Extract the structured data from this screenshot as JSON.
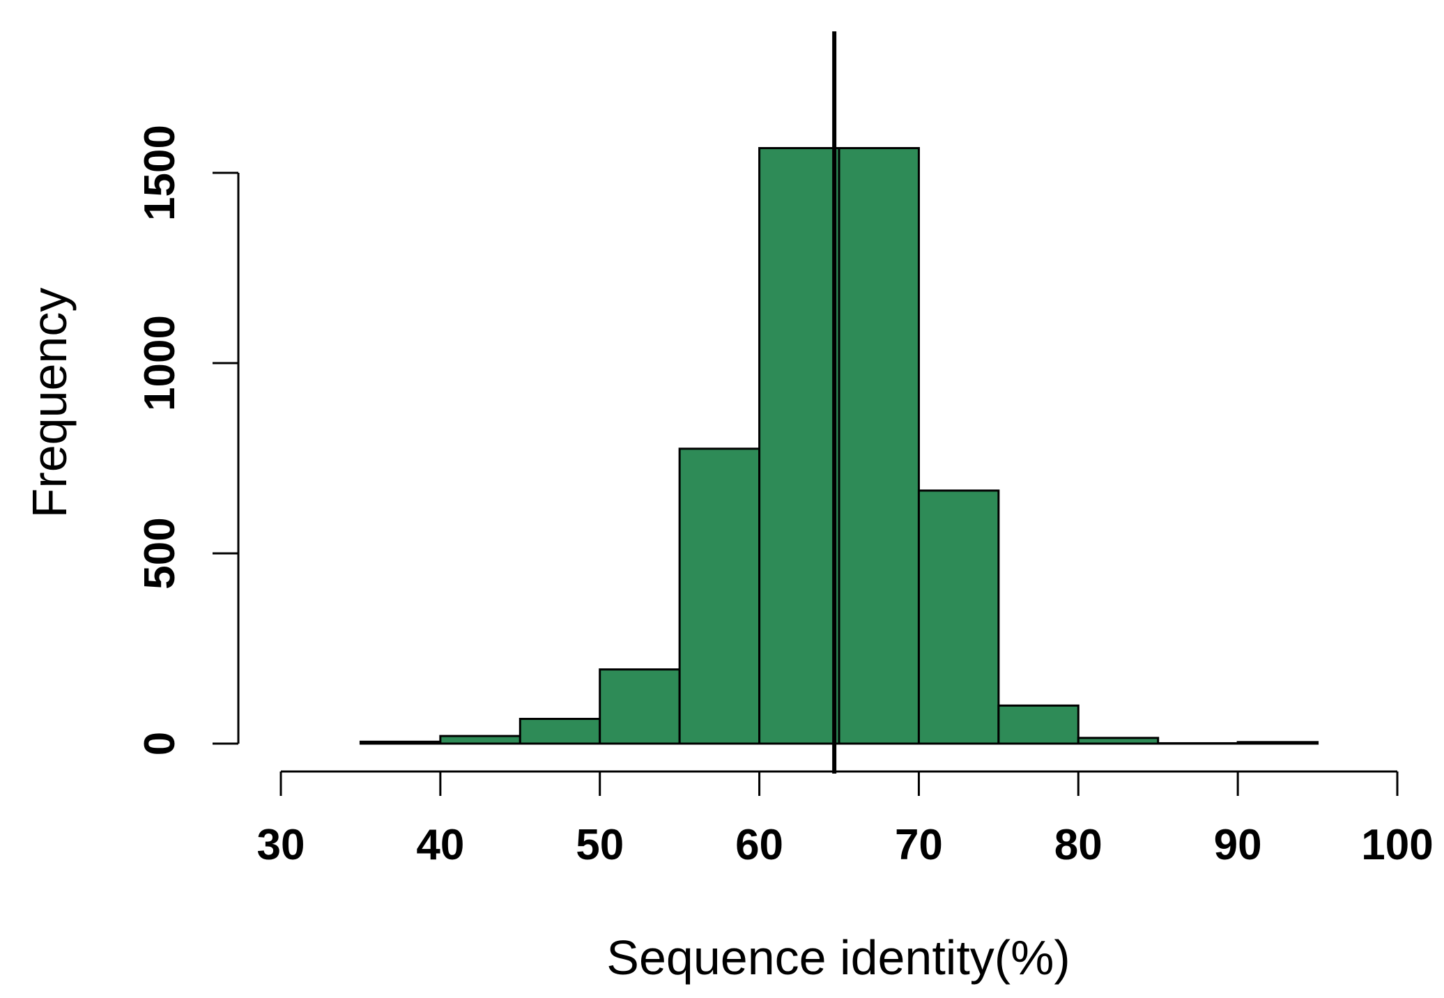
{
  "chart_data": {
    "type": "bar",
    "title": "",
    "xlabel": "Sequence identity(%)",
    "ylabel": "Frequency",
    "bins": [
      {
        "start": 35,
        "end": 40,
        "value": 5
      },
      {
        "start": 40,
        "end": 45,
        "value": 20
      },
      {
        "start": 45,
        "end": 50,
        "value": 65
      },
      {
        "start": 50,
        "end": 55,
        "value": 195
      },
      {
        "start": 55,
        "end": 60,
        "value": 775
      },
      {
        "start": 60,
        "end": 65,
        "value": 1565
      },
      {
        "start": 65,
        "end": 70,
        "value": 1565
      },
      {
        "start": 70,
        "end": 75,
        "value": 665
      },
      {
        "start": 75,
        "end": 80,
        "value": 100
      },
      {
        "start": 80,
        "end": 85,
        "value": 15
      },
      {
        "start": 85,
        "end": 90,
        "value": 1
      },
      {
        "start": 90,
        "end": 95,
        "value": 4
      }
    ],
    "x_ticks": [
      "30",
      "40",
      "50",
      "60",
      "70",
      "80",
      "90",
      "100"
    ],
    "x_tick_values": [
      30,
      40,
      50,
      60,
      70,
      80,
      90,
      100
    ],
    "y_ticks": [
      "0",
      "500",
      "1000",
      "1500"
    ],
    "y_tick_values": [
      0,
      500,
      1000,
      1500
    ],
    "xlim": [
      30,
      100
    ],
    "ylim": [
      0,
      1500
    ],
    "reference_line_x": 64.7,
    "grid": false,
    "colors": {
      "bar_fill": "#2E8B57",
      "bar_stroke": "#000000",
      "axis": "#000000",
      "reference_line": "#000000"
    }
  }
}
